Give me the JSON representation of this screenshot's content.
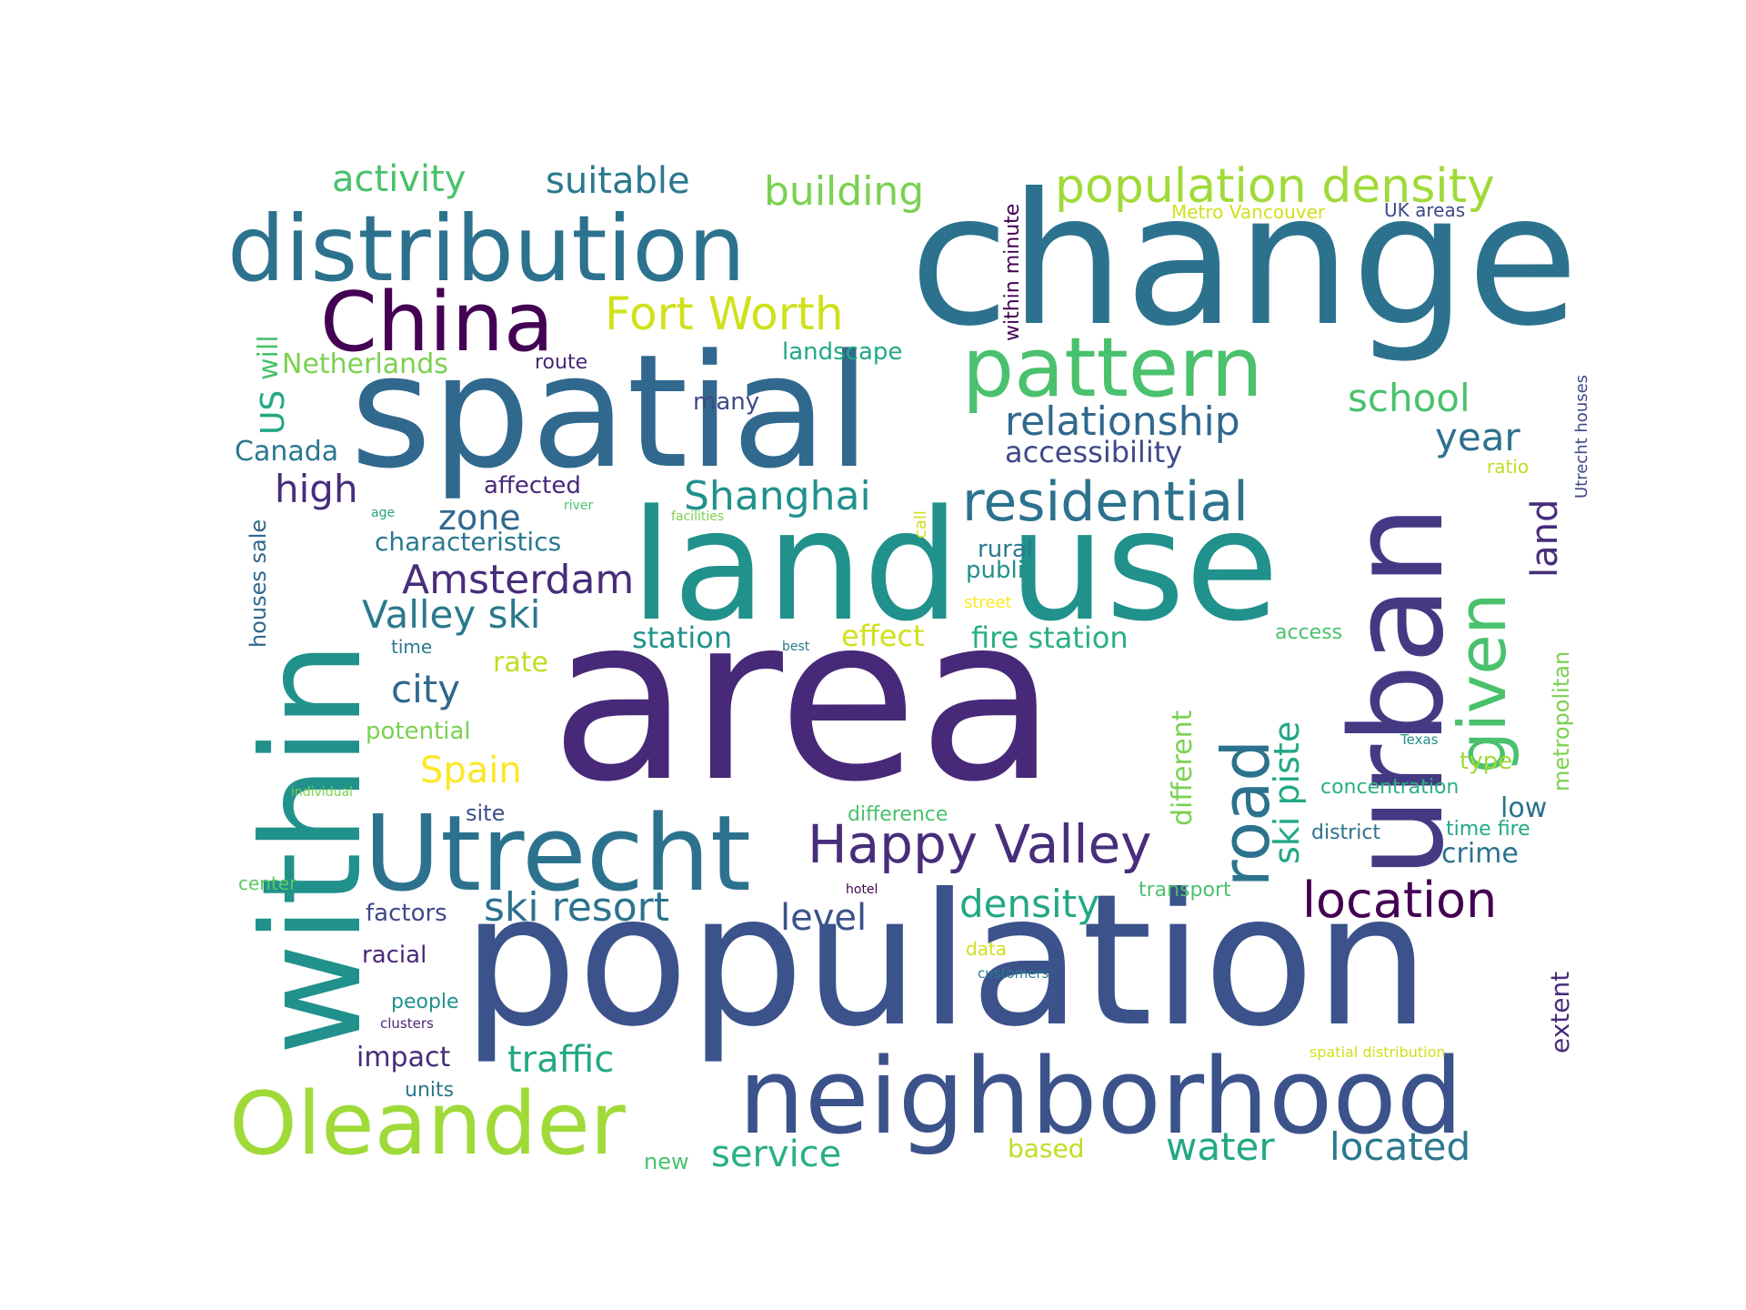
{
  "word_cloud": {
    "words": [
      {
        "text": "area",
        "color": "#482878"
      },
      {
        "text": "population",
        "color": "#3b528b"
      },
      {
        "text": "change",
        "color": "#2c728e"
      },
      {
        "text": "spatial",
        "color": "#31688e"
      },
      {
        "text": "land use",
        "color": "#21918c"
      },
      {
        "text": "within",
        "color": "#21918c"
      },
      {
        "text": "urban",
        "color": "#443983"
      },
      {
        "text": "neighborhood",
        "color": "#3b528b"
      },
      {
        "text": "Utrecht",
        "color": "#2c728e"
      },
      {
        "text": "distribution",
        "color": "#2c728e"
      },
      {
        "text": "Oleander",
        "color": "#a0da39"
      },
      {
        "text": "pattern",
        "color": "#4ac16d"
      },
      {
        "text": "China",
        "color": "#440154"
      },
      {
        "text": "given",
        "color": "#4ac16d"
      },
      {
        "text": "road",
        "color": "#2c728e"
      },
      {
        "text": "residential",
        "color": "#2c728e"
      },
      {
        "text": "population density",
        "color": "#a0da39"
      },
      {
        "text": "Happy Valley",
        "color": "#472d7b"
      },
      {
        "text": "location",
        "color": "#440154"
      },
      {
        "text": "Fort Worth",
        "color": "#d0e11c"
      },
      {
        "text": "relationship",
        "color": "#31688e"
      },
      {
        "text": "building",
        "color": "#7ad151"
      },
      {
        "text": "Amsterdam",
        "color": "#472d7b"
      },
      {
        "text": "ski resort",
        "color": "#2c728e"
      },
      {
        "text": "Shanghai",
        "color": "#21918c"
      },
      {
        "text": "water",
        "color": "#22a884"
      },
      {
        "text": "located",
        "color": "#2a788e"
      },
      {
        "text": "density",
        "color": "#22a884"
      },
      {
        "text": "school",
        "color": "#4ac16d"
      },
      {
        "text": "Valley ski",
        "color": "#2a788e"
      },
      {
        "text": "suitable",
        "color": "#2a788e"
      },
      {
        "text": "activity",
        "color": "#4ac16d"
      },
      {
        "text": "traffic",
        "color": "#22a884"
      },
      {
        "text": "service",
        "color": "#2ab07f"
      },
      {
        "text": "ski piste",
        "color": "#22a884"
      },
      {
        "text": "year",
        "color": "#2c728e"
      },
      {
        "text": "city",
        "color": "#31688e"
      },
      {
        "text": "high",
        "color": "#472d7b"
      },
      {
        "text": "Spain",
        "color": "#fde725"
      },
      {
        "text": "level",
        "color": "#3b528b"
      },
      {
        "text": "land",
        "color": "#472d7b"
      },
      {
        "text": "zone",
        "color": "#31688e"
      },
      {
        "text": "accessibility",
        "color": "#3e4989"
      },
      {
        "text": "fire station",
        "color": "#2ab07f"
      },
      {
        "text": "station",
        "color": "#21918c"
      },
      {
        "text": "effect",
        "color": "#d0e11c"
      },
      {
        "text": "Netherlands",
        "color": "#7ad151"
      },
      {
        "text": "characteristics",
        "color": "#2a788e"
      },
      {
        "text": "different",
        "color": "#7ad151"
      },
      {
        "text": "US",
        "color": "#22a884"
      },
      {
        "text": "will",
        "color": "#4ac16d"
      },
      {
        "text": "Canada",
        "color": "#2a788e"
      },
      {
        "text": "impact",
        "color": "#472d7b"
      },
      {
        "text": "crime",
        "color": "#2c728e"
      },
      {
        "text": "extent",
        "color": "#472d7b"
      },
      {
        "text": "low",
        "color": "#2c728e"
      },
      {
        "text": "affected",
        "color": "#482878"
      },
      {
        "text": "landscape",
        "color": "#22a884"
      },
      {
        "text": "potential",
        "color": "#7ad151"
      },
      {
        "text": "rate",
        "color": "#bddf26"
      },
      {
        "text": "factors",
        "color": "#3e4989"
      },
      {
        "text": "racial",
        "color": "#482878"
      },
      {
        "text": "rural",
        "color": "#2a788e"
      },
      {
        "text": "public",
        "color": "#21918c"
      },
      {
        "text": "many",
        "color": "#3e4989"
      },
      {
        "text": "metropolitan",
        "color": "#7ad151"
      },
      {
        "text": "within minute",
        "color": "#440154"
      },
      {
        "text": "based",
        "color": "#bddf26"
      },
      {
        "text": "new",
        "color": "#4ac16d"
      },
      {
        "text": "site",
        "color": "#3b528b"
      },
      {
        "text": "people",
        "color": "#21918c"
      },
      {
        "text": "units",
        "color": "#2a788e"
      },
      {
        "text": "route",
        "color": "#482878"
      },
      {
        "text": "houses sale",
        "color": "#31688e"
      },
      {
        "text": "type",
        "color": "#a0da39"
      },
      {
        "text": "district",
        "color": "#2c728e"
      },
      {
        "text": "time fire",
        "color": "#22a884"
      },
      {
        "text": "concentration",
        "color": "#2ab07f"
      },
      {
        "text": "difference",
        "color": "#4ac16d"
      },
      {
        "text": "transport",
        "color": "#4ac16d"
      },
      {
        "text": "access",
        "color": "#4ac16d"
      },
      {
        "text": "Metro Vancouver",
        "color": "#d0e11c"
      },
      {
        "text": "UK areas",
        "color": "#3e4989"
      },
      {
        "text": "Utrecht houses",
        "color": "#3e4989"
      },
      {
        "text": "ratio",
        "color": "#bddf26"
      },
      {
        "text": "time",
        "color": "#2a788e"
      },
      {
        "text": "center",
        "color": "#5ec962"
      },
      {
        "text": "data",
        "color": "#d0e11c"
      },
      {
        "text": "street",
        "color": "#fde725"
      },
      {
        "text": "call",
        "color": "#d0e11c"
      },
      {
        "text": "customers",
        "color": "#2a788e"
      },
      {
        "text": "clusters",
        "color": "#482878"
      },
      {
        "text": "spatial distribution",
        "color": "#d0e11c"
      },
      {
        "text": "Texas",
        "color": "#21918c"
      },
      {
        "text": "individual",
        "color": "#7ad151"
      },
      {
        "text": "hotel",
        "color": "#440154"
      },
      {
        "text": "best",
        "color": "#2a788e"
      },
      {
        "text": "facilities",
        "color": "#7ad151"
      },
      {
        "text": "river",
        "color": "#4ac16d"
      },
      {
        "text": "age",
        "color": "#22a884"
      }
    ]
  }
}
